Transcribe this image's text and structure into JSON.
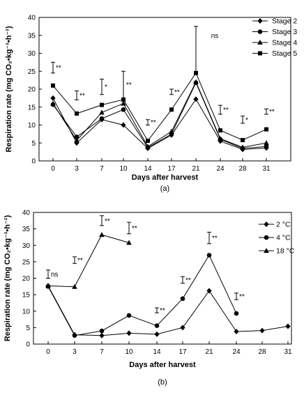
{
  "chart_data": [
    {
      "type": "line",
      "caption": "(a)",
      "xlabel": "Days after harvest",
      "ylabel": "Respiration rate (mg CO₂•kg⁻¹•h⁻¹)",
      "ylim": [
        0,
        40
      ],
      "yticks": [
        0,
        5,
        10,
        15,
        20,
        25,
        30,
        35,
        40
      ],
      "x": [
        "0",
        "3",
        "7",
        "10",
        "14",
        "17",
        "21",
        "24",
        "28",
        "31"
      ],
      "legend_position": "top-right",
      "series": [
        {
          "name": "Stage 2",
          "marker": "diamond",
          "values": [
            17.5,
            5.0,
            11.5,
            10.0,
            3.5,
            7.2,
            17.2,
            5.5,
            3.2,
            3.6
          ]
        },
        {
          "name": "Stage 3",
          "marker": "circle",
          "values": [
            15.7,
            6.7,
            11.8,
            14.3,
            3.7,
            7.5,
            21.8,
            6.0,
            3.5,
            4.0
          ]
        },
        {
          "name": "Stage 4",
          "marker": "triangle",
          "values": [
            16.0,
            5.7,
            13.5,
            16.0,
            4.0,
            8.2,
            22.0,
            6.2,
            3.8,
            5.0
          ]
        },
        {
          "name": "Stage 5",
          "marker": "square",
          "values": [
            21.0,
            13.2,
            15.6,
            17.1,
            5.6,
            14.3,
            24.5,
            8.5,
            5.8,
            8.8
          ]
        }
      ],
      "error_bars": [
        {
          "x": "0",
          "low": 24.5,
          "high": 27.5,
          "label": "**"
        },
        {
          "x": "3",
          "low": 17.0,
          "high": 19.5,
          "label": "**"
        },
        {
          "x": "7",
          "low": 18.5,
          "high": 22.8,
          "label": "*"
        },
        {
          "x": "10",
          "low": 17.5,
          "high": 25.0,
          "label": "**"
        },
        {
          "x": "14",
          "low": 10.0,
          "high": 11.5,
          "label": "**"
        },
        {
          "x": "17",
          "low": 18.5,
          "high": 20.0,
          "label": "**"
        },
        {
          "x": "21",
          "low": 24.5,
          "high": 37.5,
          "label": "ns"
        },
        {
          "x": "24",
          "low": 13.0,
          "high": 15.5,
          "label": "**"
        },
        {
          "x": "28",
          "low": 10.5,
          "high": 12.5,
          "label": "*"
        },
        {
          "x": "31",
          "low": 13.0,
          "high": 14.5,
          "label": "**"
        }
      ]
    },
    {
      "type": "line",
      "caption": "(b)",
      "xlabel": "Days after harvest",
      "ylabel": "Respiration rate (mg CO₂•kg⁻¹•h⁻¹)",
      "ylim": [
        0,
        40
      ],
      "yticks": [
        0,
        5,
        10,
        15,
        20,
        25,
        30,
        35,
        40
      ],
      "x": [
        "0",
        "3",
        "7",
        "10",
        "14",
        "17",
        "21",
        "24",
        "28",
        "31"
      ],
      "legend_position": "top-right",
      "series": [
        {
          "name": "2 °C",
          "marker": "diamond",
          "values": [
            17.7,
            2.8,
            2.6,
            3.3,
            3.0,
            5.0,
            16.2,
            3.8,
            4.1,
            5.4
          ]
        },
        {
          "name": "4 °C",
          "marker": "circle",
          "values": [
            17.5,
            2.6,
            4.0,
            8.7,
            5.6,
            13.8,
            27.0,
            9.3,
            null,
            null
          ]
        },
        {
          "name": "18 °C",
          "marker": "triangle",
          "values": [
            17.7,
            17.4,
            33.2,
            30.8,
            null,
            null,
            null,
            null,
            null,
            null
          ]
        }
      ],
      "error_bars": [
        {
          "x": "0",
          "low": 20.0,
          "high": 22.5,
          "label": "ns"
        },
        {
          "x": "3",
          "low": 24.5,
          "high": 26.5,
          "label": "**"
        },
        {
          "x": "7",
          "low": 36.0,
          "high": 39.0,
          "label": "**"
        },
        {
          "x": "10",
          "low": 33.5,
          "high": 37.0,
          "label": "**"
        },
        {
          "x": "14",
          "low": 9.5,
          "high": 11.0,
          "label": "**"
        },
        {
          "x": "17",
          "low": 18.5,
          "high": 20.5,
          "label": "**"
        },
        {
          "x": "21",
          "low": 30.5,
          "high": 34.0,
          "label": "**"
        },
        {
          "x": "24",
          "low": 13.5,
          "high": 15.5,
          "label": "**"
        }
      ]
    }
  ]
}
